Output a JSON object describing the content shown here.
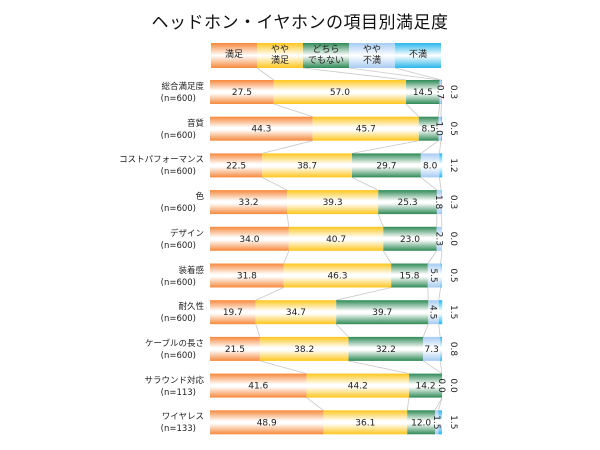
{
  "chart_data": {
    "type": "bar",
    "orientation": "horizontal-stacked-100",
    "title": "ヘッドホン・イヤホンの項目別満足度",
    "xlabel": "",
    "ylabel": "",
    "xlim": [
      0,
      100
    ],
    "grid": false,
    "legend_position": "top",
    "series": [
      {
        "name": "満足",
        "legend_label": "満足",
        "color": "#f7883a",
        "values": [
          27.5,
          44.3,
          22.5,
          33.2,
          34.0,
          31.8,
          19.7,
          21.5,
          41.6,
          48.9
        ]
      },
      {
        "name": "やや満足",
        "legend_label": "やや\n満足",
        "color": "#ffc61e",
        "values": [
          57.0,
          45.7,
          38.7,
          39.3,
          40.7,
          46.3,
          34.7,
          38.2,
          44.2,
          36.1
        ]
      },
      {
        "name": "どちらでもない",
        "legend_label": "どちら\nでもない",
        "color": "#2f8a56",
        "values": [
          14.5,
          8.5,
          29.7,
          25.3,
          23.0,
          15.8,
          39.7,
          32.2,
          14.2,
          12.0
        ]
      },
      {
        "name": "やや不満",
        "legend_label": "やや\n不満",
        "color": "#a6cbf2",
        "values": [
          0.7,
          1.0,
          8.0,
          1.8,
          2.3,
          5.5,
          4.5,
          7.3,
          0.0,
          1.5
        ]
      },
      {
        "name": "不満",
        "legend_label": "不満",
        "color": "#29b6ea",
        "values": [
          0.3,
          0.5,
          1.2,
          0.3,
          0.0,
          0.5,
          1.5,
          0.8,
          0.0,
          1.5
        ]
      }
    ],
    "categories": [
      {
        "label": "総合満足度",
        "n": "(n=600)"
      },
      {
        "label": "音質",
        "n": "(n=600)"
      },
      {
        "label": "コストパフォーマンス",
        "n": "(n=600)"
      },
      {
        "label": "色",
        "n": "(n=600)"
      },
      {
        "label": "デザイン",
        "n": "(n=600)"
      },
      {
        "label": "装着感",
        "n": "(n=600)"
      },
      {
        "label": "耐久性",
        "n": "(n=600)"
      },
      {
        "label": "ケーブルの長さ",
        "n": "(n=600)"
      },
      {
        "label": "サラウンド対応",
        "n": "(n=113)"
      },
      {
        "label": "ワイヤレス",
        "n": "(n=133)"
      }
    ],
    "data_labels": [
      [
        "27.5",
        "57.0",
        "14.5",
        "0.7",
        "0.3"
      ],
      [
        "44.3",
        "45.7",
        "8.5",
        "1.0",
        "0.5"
      ],
      [
        "22.5",
        "38.7",
        "29.7",
        "8.0",
        "1.2"
      ],
      [
        "33.2",
        "39.3",
        "25.3",
        "1.8",
        "0.3"
      ],
      [
        "34.0",
        "40.7",
        "23.0",
        "2.3",
        "0.0"
      ],
      [
        "31.8",
        "46.3",
        "15.8",
        "5.5",
        "0.5"
      ],
      [
        "19.7",
        "34.7",
        "39.7",
        "4.5",
        "1.5"
      ],
      [
        "21.5",
        "38.2",
        "32.2",
        "7.3",
        "0.8"
      ],
      [
        "41.6",
        "44.2",
        "14.2",
        "0.0",
        "0.0"
      ],
      [
        "48.9",
        "36.1",
        "12.0",
        "1.5",
        "1.5"
      ]
    ]
  }
}
